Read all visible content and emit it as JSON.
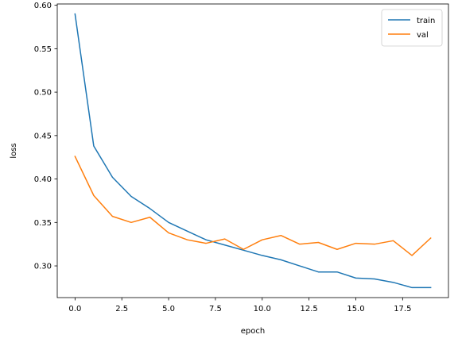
{
  "chart_data": {
    "type": "line",
    "xlabel": "epoch",
    "ylabel": "loss",
    "xlim": [
      -0.95,
      19.95
    ],
    "ylim": [
      0.2635,
      0.6015
    ],
    "xticks": [
      0,
      2.5,
      5,
      7.5,
      10,
      12.5,
      15,
      17.5
    ],
    "xtick_labels": [
      "0.0",
      "2.5",
      "5.0",
      "7.5",
      "10.0",
      "12.5",
      "15.0",
      "17.5"
    ],
    "yticks": [
      0.3,
      0.35,
      0.4,
      0.45,
      0.5,
      0.55,
      0.6
    ],
    "ytick_labels": [
      "0.30",
      "0.35",
      "0.40",
      "0.45",
      "0.50",
      "0.55",
      "0.60"
    ],
    "grid": false,
    "legend_position": "top-right",
    "x": [
      0,
      1,
      2,
      3,
      4,
      5,
      6,
      7,
      8,
      9,
      10,
      11,
      12,
      13,
      14,
      15,
      16,
      17,
      18,
      19
    ],
    "series": [
      {
        "name": "train",
        "color": "#1f77b4",
        "values": [
          0.59,
          0.438,
          0.402,
          0.38,
          0.366,
          0.35,
          0.34,
          0.33,
          0.324,
          0.318,
          0.312,
          0.307,
          0.3,
          0.293,
          0.293,
          0.286,
          0.285,
          0.281,
          0.275,
          0.275
        ]
      },
      {
        "name": "val",
        "color": "#ff7f0e",
        "values": [
          0.426,
          0.381,
          0.357,
          0.35,
          0.356,
          0.338,
          0.33,
          0.326,
          0.331,
          0.319,
          0.33,
          0.335,
          0.325,
          0.327,
          0.319,
          0.326,
          0.325,
          0.329,
          0.312,
          0.332
        ]
      }
    ]
  }
}
